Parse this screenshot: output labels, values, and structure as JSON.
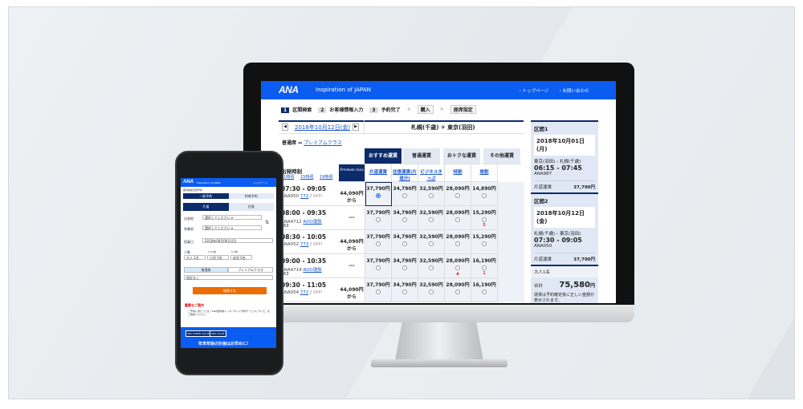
{
  "header": {
    "logo": "ANA",
    "tagline": "Inspiration of JAPAN",
    "nav": [
      "・トップページ",
      "・お問い合わせ"
    ]
  },
  "steps": [
    {
      "num": "1",
      "label": "区間検索"
    },
    {
      "num": "2",
      "label": "お客様情報入力"
    },
    {
      "num": "3",
      "label": "予約完了"
    }
  ],
  "extras": [
    "購入",
    "座席指定"
  ],
  "date_nav": {
    "date": "2018年10月12日(金)",
    "from": "札幌(千歳)",
    "to": "東京(羽田)"
  },
  "cabin": {
    "current": "普通席",
    "switch_link": "プレミアムクラス"
  },
  "fare_tabs": [
    "おすすめ運賃",
    "普通運賃",
    "おトクな運賃",
    "その他運賃"
  ],
  "table": {
    "dep_label": "出発時刻",
    "time_links": [
      "11時頃",
      "15時頃",
      "19時頃"
    ],
    "premium_label": "Premium class",
    "columns": [
      "片道運賃",
      "往復運賃(片道分)",
      "ビジネスきっぷ",
      "特割",
      "旅割"
    ],
    "rows": [
      {
        "time": "07:30 - 09:05",
        "flight": "ANA050",
        "aircraft": "772",
        "wifi": "WiFi",
        "premium": "44,090円",
        "premium_suffix": "から",
        "fares": [
          "37,790円",
          "34,790円",
          "32,590円",
          "28,090円",
          "14,890円"
        ],
        "selected": 0,
        "notes": [
          "",
          "",
          "",
          "",
          ""
        ]
      },
      {
        "time": "08:00 - 09:35",
        "flight": "ANA4712",
        "aircraft": "ADO運航",
        "sub": "763",
        "wifi": "",
        "premium": "---",
        "premium_suffix": "",
        "fares": [
          "37,790円",
          "34,790円",
          "32,590円",
          "28,090円",
          "15,290円"
        ],
        "selected": -1,
        "notes": [
          "",
          "",
          "",
          "",
          "5"
        ]
      },
      {
        "time": "08:30 - 10:05",
        "flight": "ANA052",
        "aircraft": "773",
        "wifi": "WiFi",
        "premium": "44,090円",
        "premium_suffix": "から",
        "fares": [
          "37,790円",
          "34,790円",
          "32,590円",
          "28,090円",
          "15,290円"
        ],
        "selected": -1,
        "notes": [
          "",
          "",
          "",
          "",
          ""
        ]
      },
      {
        "time": "09:00 - 10:35",
        "flight": "ANA4714",
        "aircraft": "ADO運航",
        "sub": "763",
        "wifi": "",
        "premium": "---",
        "premium_suffix": "",
        "fares": [
          "37,790円",
          "34,790円",
          "32,590円",
          "28,090円",
          "16,190円"
        ],
        "selected": -1,
        "notes": [
          "",
          "",
          "",
          "▲",
          "1"
        ]
      },
      {
        "time": "09:30 - 11:05",
        "flight": "ANA054",
        "aircraft": "772",
        "wifi": "WiFi",
        "premium": "44,090円",
        "premium_suffix": "から",
        "fares": [
          "37,790円",
          "34,790円",
          "32,590円",
          "28,090円",
          "16,190円"
        ],
        "selected": -1,
        "notes": [
          "",
          "",
          "",
          "",
          ""
        ]
      }
    ]
  },
  "summary": {
    "segments": [
      {
        "title": "区間1",
        "date": "2018年10月01日(月)",
        "route": "東京(羽田) › 札幌(千歳)",
        "time": "06:15 - 07:45",
        "flight": "ANA987",
        "fare_label": "片道運賃",
        "fare": "37,790円"
      },
      {
        "title": "区間2",
        "date": "2018年10月12日(金)",
        "route": "札幌(千歳) › 東京(羽田)",
        "time": "07:30 - 09:05",
        "flight": "ANA050",
        "fare_label": "片道運賃",
        "fare": "37,790円"
      }
    ],
    "passengers": "大人1名",
    "total_label": "合計",
    "total": "75,580",
    "total_unit": "円",
    "note": "運賃は予約確定後に正しい金額が表示されます。"
  },
  "phone": {
    "logo": "ANA",
    "tagline": "Inspiration of JAPAN",
    "nav": "トップページ",
    "section": "国内線航空券予約",
    "tabs": [
      "一般予約",
      "特典予約"
    ],
    "trip": [
      "片道",
      "往復"
    ],
    "dep_label": "出発地",
    "arr_label": "到着地",
    "select_placeholder": "選択してください",
    "date_label": "搭乗日",
    "date": "2018年08月06日(月)",
    "pax_label": "人数",
    "pax": [
      {
        "label": "",
        "value": "大人 1名"
      },
      {
        "label": "3-11歳",
        "value": "小児 0名"
      },
      {
        "label": "0-2歳",
        "value": "幼児 0名"
      }
    ],
    "cabin": [
      "普通席",
      "プレミアムクラス"
    ],
    "fare_select": "指定なし",
    "search": "検索する",
    "notice_title": "重要なご案内",
    "notice": "ご予約にあたっては「ANA国内線インターネット予約サービスについて」をご確認ください。",
    "banner_tags": [
      "ANA SUPER VALUE",
      "ANA VALUE"
    ],
    "banner": "年末年始の計画はお早めに!"
  }
}
